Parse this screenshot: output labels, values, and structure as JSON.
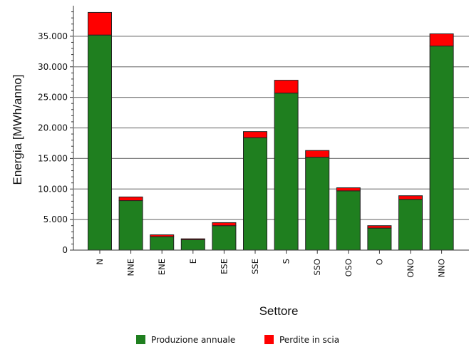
{
  "chart_data": {
    "type": "bar",
    "stacked": true,
    "xlabel": "Settore",
    "ylabel": "Energia [MWh/anno]",
    "ylim": [
      0,
      40000
    ],
    "yticks": [
      0,
      5000,
      10000,
      15000,
      20000,
      25000,
      30000,
      35000
    ],
    "ytick_labels": [
      "0",
      "5.000",
      "10.000",
      "15.000",
      "20.000",
      "25.000",
      "30.000",
      "35.000"
    ],
    "grid": true,
    "legend_position": "bottom-center",
    "categories": [
      "N",
      "NNE",
      "ENE",
      "E",
      "ESE",
      "SSE",
      "S",
      "SSO",
      "OSO",
      "O",
      "ONO",
      "NNO"
    ],
    "series": [
      {
        "name": "Produzione annuale",
        "color": "#1f7f1f",
        "values": [
          35200,
          8100,
          2200,
          1700,
          4000,
          18400,
          25700,
          15200,
          9700,
          3600,
          8300,
          33400
        ]
      },
      {
        "name": "Perdite in scia",
        "color": "#ff0000",
        "values": [
          3700,
          600,
          300,
          150,
          500,
          1000,
          2100,
          1100,
          500,
          400,
          600,
          2000
        ]
      }
    ]
  }
}
